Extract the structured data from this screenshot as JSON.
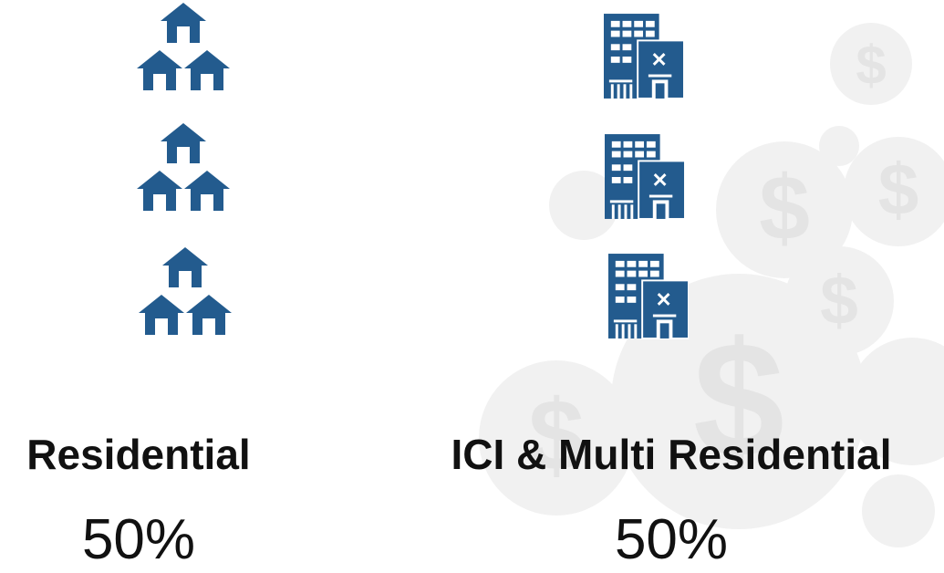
{
  "columns": [
    {
      "label": "Residential",
      "share": "50%"
    },
    {
      "label": "ICI & Multi Residential",
      "share": "50%"
    }
  ]
}
